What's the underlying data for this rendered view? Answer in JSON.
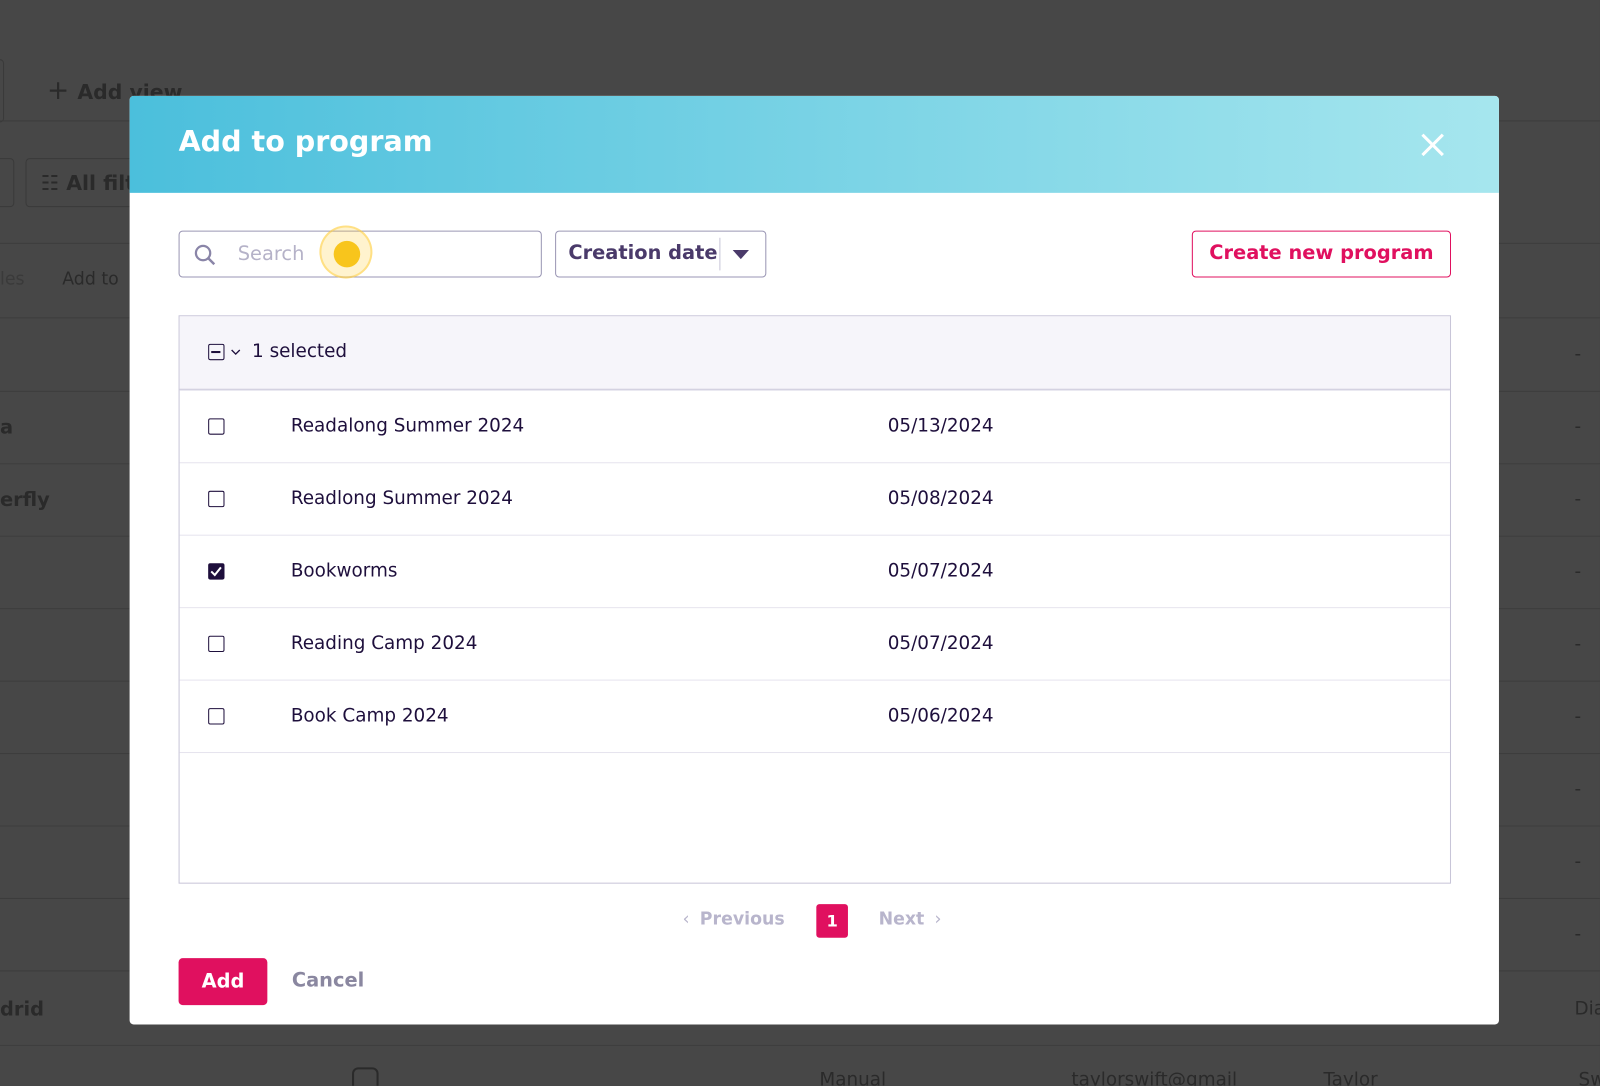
{
  "background": {
    "add_view": "Add view",
    "filters": "All filt",
    "bulk_left": "les",
    "add_to": "Add to",
    "row_names": [
      "a",
      "erfly",
      "drid"
    ],
    "dashes": [
      "-",
      "-",
      "-",
      "-",
      "-",
      "-",
      "-",
      "-",
      "-"
    ],
    "bottom_row": [
      "Manual",
      "taylorswift@gmail",
      "Taylor",
      "Sw"
    ],
    "right_text": "Dia"
  },
  "modal": {
    "title": "Add to program",
    "search_placeholder": "Search",
    "sort_label": "Creation date",
    "create_button": "Create new program",
    "selected_label": "1 selected",
    "rows": [
      {
        "name": "Readalong Summer 2024",
        "date": "05/13/2024",
        "selected": false
      },
      {
        "name": "Readlong Summer 2024",
        "date": "05/08/2024",
        "selected": false
      },
      {
        "name": "Bookworms",
        "date": "05/07/2024",
        "selected": true
      },
      {
        "name": "Reading Camp 2024",
        "date": "05/07/2024",
        "selected": false
      },
      {
        "name": "Book Camp 2024",
        "date": "05/06/2024",
        "selected": false
      }
    ],
    "pagination": {
      "previous": "Previous",
      "page": "1",
      "next": "Next"
    },
    "add_button": "Add",
    "cancel_button": "Cancel"
  }
}
